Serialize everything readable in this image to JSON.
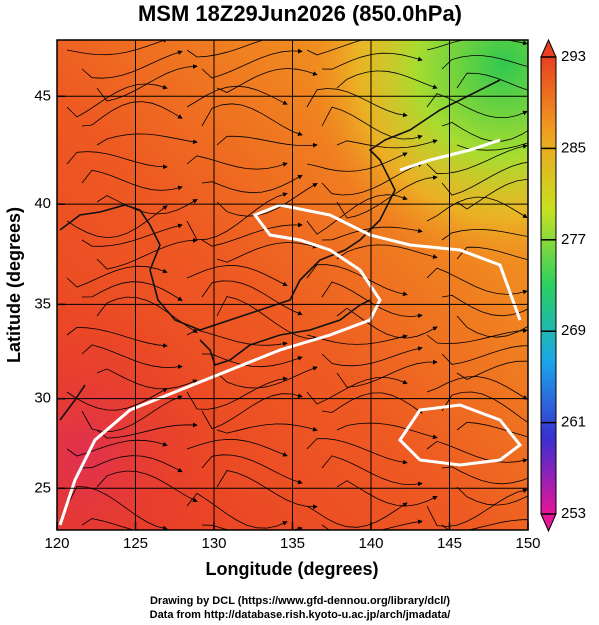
{
  "chart_data": {
    "type": "heatmap",
    "title": "MSM 18Z29Jun2026 (850.0hPa)",
    "x_label": "Longitude (degrees)",
    "y_label": "Latitude  (degrees)",
    "projection": "mercator",
    "xlim": [
      120,
      150
    ],
    "xticks": [
      120,
      125,
      130,
      135,
      140,
      145,
      150
    ],
    "ylim": [
      22.6,
      47.45
    ],
    "yticks": [
      25,
      30,
      35,
      40,
      45
    ],
    "grid": true,
    "colorbar": {
      "range": [
        253,
        293
      ],
      "ticks": [
        293,
        285,
        277,
        269,
        261,
        253
      ],
      "colors": [
        "#e8149a",
        "#3a2fd0",
        "#1aa6e8",
        "#2ad060",
        "#c8e020",
        "#f0a020",
        "#e84020"
      ]
    },
    "footer": [
      "Drawing by DCL (https://www.gfd-dennou.org/library/dcl/)",
      "Data from http://database.rish.kyoto-u.ac.jp/arch/jmadata/"
    ]
  }
}
